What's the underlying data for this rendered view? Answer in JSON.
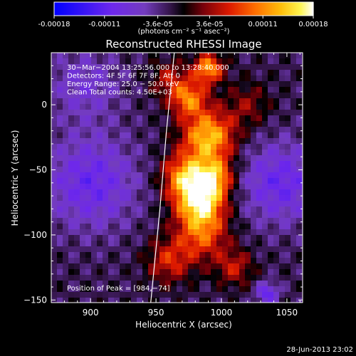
{
  "colorbar": {
    "ticks": [
      "-0.00018",
      "-0.00011",
      "-3.6e-05",
      "3.6e-05",
      "0.00011",
      "0.00018"
    ],
    "tick_values": [
      -0.00018,
      -0.00011,
      -3.6e-05,
      3.6e-05,
      0.00011,
      0.00018
    ],
    "range": [
      -0.00018,
      0.00018
    ],
    "units_label": "(photons cm⁻² s⁻¹ asec⁻²)"
  },
  "chart_data": {
    "type": "heatmap",
    "title": "Reconstructed RHESSI Image",
    "xlabel": "Heliocentric X (arcsec)",
    "ylabel": "Heliocentric Y (arcsec)",
    "xlim": [
      870,
      1062
    ],
    "ylim": [
      -152,
      40
    ],
    "x_ticks": [
      900,
      950,
      1000,
      1050
    ],
    "x_tick_labels": [
      "900",
      "950",
      "1000",
      "1050"
    ],
    "y_ticks": [
      0,
      -50,
      -100,
      -150
    ],
    "y_tick_labels": [
      "0",
      "−50",
      "−100",
      "−150"
    ],
    "colormap": "RHESSI red-temperature (blue → purple → black → red → orange → yellow → white)",
    "info_lines": [
      "30−Mar−2004 13:25:56.000 to 13:28:40.000",
      "Detectors: 4F 5F 6F 7F 8F, Att 0",
      "Energy Range: 25.0 − 50.0 keV",
      "Clean     Total counts: 4.50E+03"
    ],
    "peak_label": "Position of Peak = [984,−74]",
    "peak": [
      984,
      -74
    ],
    "limb_points": [
      [
        964,
        40
      ],
      [
        958,
        -20
      ],
      [
        953,
        -80
      ],
      [
        946,
        -152
      ]
    ],
    "sources": [
      {
        "x": 990,
        "y": 28,
        "amp": 0.00014,
        "sigma": 8
      },
      {
        "x": 975,
        "y": 5,
        "amp": 0.00012,
        "sigma": 10
      },
      {
        "x": 990,
        "y": -25,
        "amp": 0.00016,
        "sigma": 14
      },
      {
        "x": 984,
        "y": -74,
        "amp": 0.00018,
        "sigma": 13
      },
      {
        "x": 972,
        "y": -55,
        "amp": 0.00013,
        "sigma": 12
      },
      {
        "x": 995,
        "y": -55,
        "amp": 0.00012,
        "sigma": 10
      },
      {
        "x": 985,
        "y": -100,
        "amp": 0.0001,
        "sigma": 14
      },
      {
        "x": 960,
        "y": -120,
        "amp": 8e-05,
        "sigma": 12
      },
      {
        "x": 1010,
        "y": -125,
        "amp": 7e-05,
        "sigma": 10
      },
      {
        "x": 960,
        "y": 20,
        "amp": 6e-05,
        "sigma": 10
      },
      {
        "x": 1020,
        "y": 0,
        "amp": 5e-05,
        "sigma": 12
      },
      {
        "x": 900,
        "y": -60,
        "amp": -8e-05,
        "sigma": 25
      },
      {
        "x": 1045,
        "y": -60,
        "amp": -8e-05,
        "sigma": 22
      },
      {
        "x": 895,
        "y": 15,
        "amp": -5e-05,
        "sigma": 20
      },
      {
        "x": 1035,
        "y": -145,
        "amp": -9e-05,
        "sigma": 6
      }
    ]
  },
  "footer": {
    "timestamp": "28-Jun-2013 23:02"
  }
}
